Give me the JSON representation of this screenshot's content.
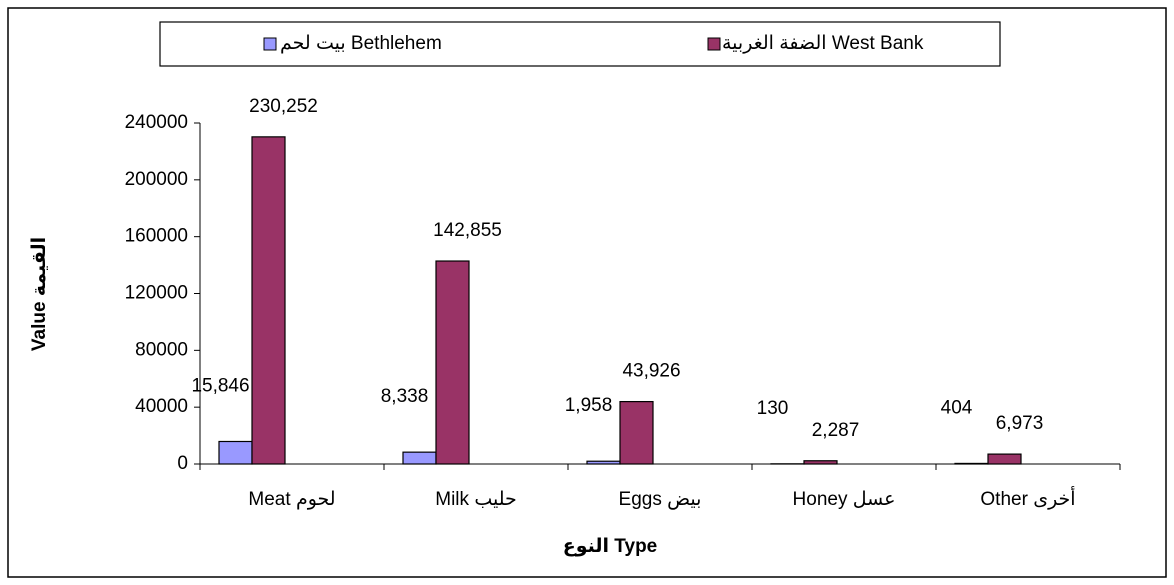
{
  "chart_data": {
    "type": "bar",
    "categories": [
      "Meat لحوم",
      "Milk حليب",
      "Eggs بيض",
      "Honey عسل",
      "Other أخرى"
    ],
    "series": [
      {
        "name": "بيت لحم Bethlehem",
        "color": "#9999ff",
        "values": [
          15846,
          8338,
          1958,
          130,
          404
        ],
        "value_labels": [
          "15,846",
          "8,338",
          "1,958",
          "130",
          "404"
        ]
      },
      {
        "name": "الضفة الغربية West Bank",
        "color": "#993366",
        "values": [
          230252,
          142855,
          43926,
          2287,
          6973
        ],
        "value_labels": [
          "230,252",
          "142,855",
          "43,926",
          "2,287",
          "6,973"
        ]
      }
    ],
    "ylabel": "Value القيمة",
    "xlabel": "النوع Type",
    "ylim": [
      0,
      240000
    ],
    "yticks": [
      0,
      40000,
      80000,
      120000,
      160000,
      200000,
      240000
    ]
  }
}
